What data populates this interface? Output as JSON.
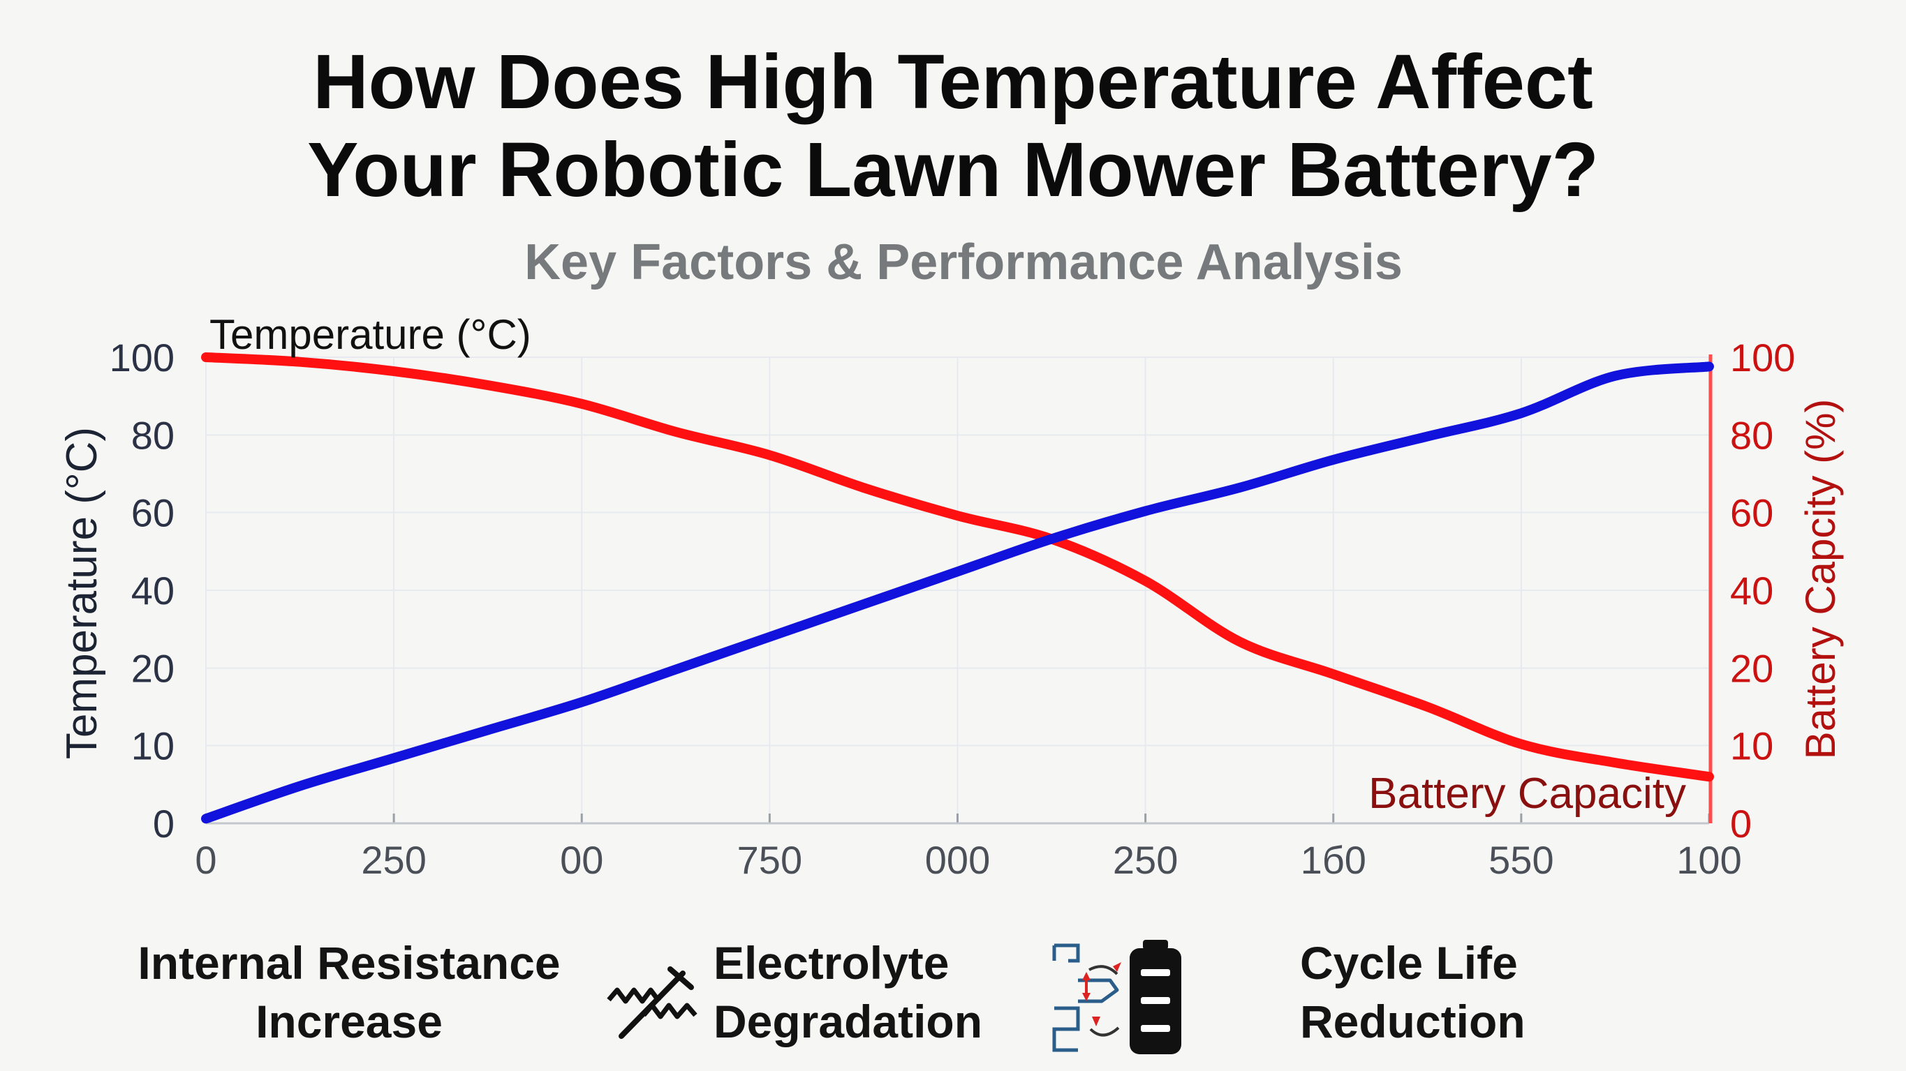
{
  "title_line1": "How Does High Temperature Affect",
  "title_line2": "Your Robotic Lawn Mower Battery?",
  "subtitle": "Key Factors & Performance Analysis",
  "chart_data": {
    "type": "line",
    "x_tick_labels": [
      "0",
      "250",
      "00",
      "750",
      "000",
      "250",
      "1б0",
      "550",
      "100"
    ],
    "x_tick_index": [
      0,
      1,
      2,
      3,
      4,
      5,
      6,
      7,
      8
    ],
    "left_axis": {
      "label": "Temperature (°C)",
      "corner_label": "Temperature (°C)",
      "tick_labels": [
        "0",
        "10",
        "20",
        "40",
        "60",
        "80",
        "100"
      ],
      "color": "#1f2a44"
    },
    "right_axis": {
      "label": "Battery Capcity (%)",
      "tick_labels": [
        "0",
        "10",
        "20",
        "40",
        "60",
        "80",
        "100"
      ],
      "color": "#cc1111"
    },
    "series": [
      {
        "name": "Temperature (°C)",
        "color": "#1212dd",
        "axis": "left",
        "x": [
          0,
          0.5,
          1,
          1.5,
          2,
          2.5,
          3,
          3.5,
          4,
          4.5,
          5,
          5.5,
          6,
          6.5,
          7,
          7.5,
          8
        ],
        "y": [
          1,
          8,
          14,
          20,
          26,
          33,
          40,
          47,
          54,
          61,
          67,
          72,
          78,
          83,
          88,
          96,
          98
        ]
      },
      {
        "name": "Battery Capacity",
        "color": "#ff1111",
        "axis": "right",
        "x": [
          0,
          0.5,
          1,
          1.5,
          2,
          2.5,
          3,
          3.5,
          4,
          4.5,
          5,
          5.5,
          6,
          6.5,
          7,
          7.5,
          8
        ],
        "y": [
          100,
          99,
          97,
          94,
          90,
          84,
          79,
          72,
          66,
          61,
          52,
          39,
          32,
          25,
          17,
          13,
          10
        ]
      }
    ],
    "series_label": "Battery Capacity",
    "grid": true
  },
  "factors": {
    "f1_line1": "Internal Resistance",
    "f1_line2": "Increase",
    "f2_line1": "Electrolyte",
    "f2_line2": "Degradation",
    "f3_line1": "Cycle Life",
    "f3_line2": "Reduction"
  },
  "icons": {
    "degradation": "zigzag-arrow-icon",
    "cycle_life": "battery-cells-icon"
  }
}
